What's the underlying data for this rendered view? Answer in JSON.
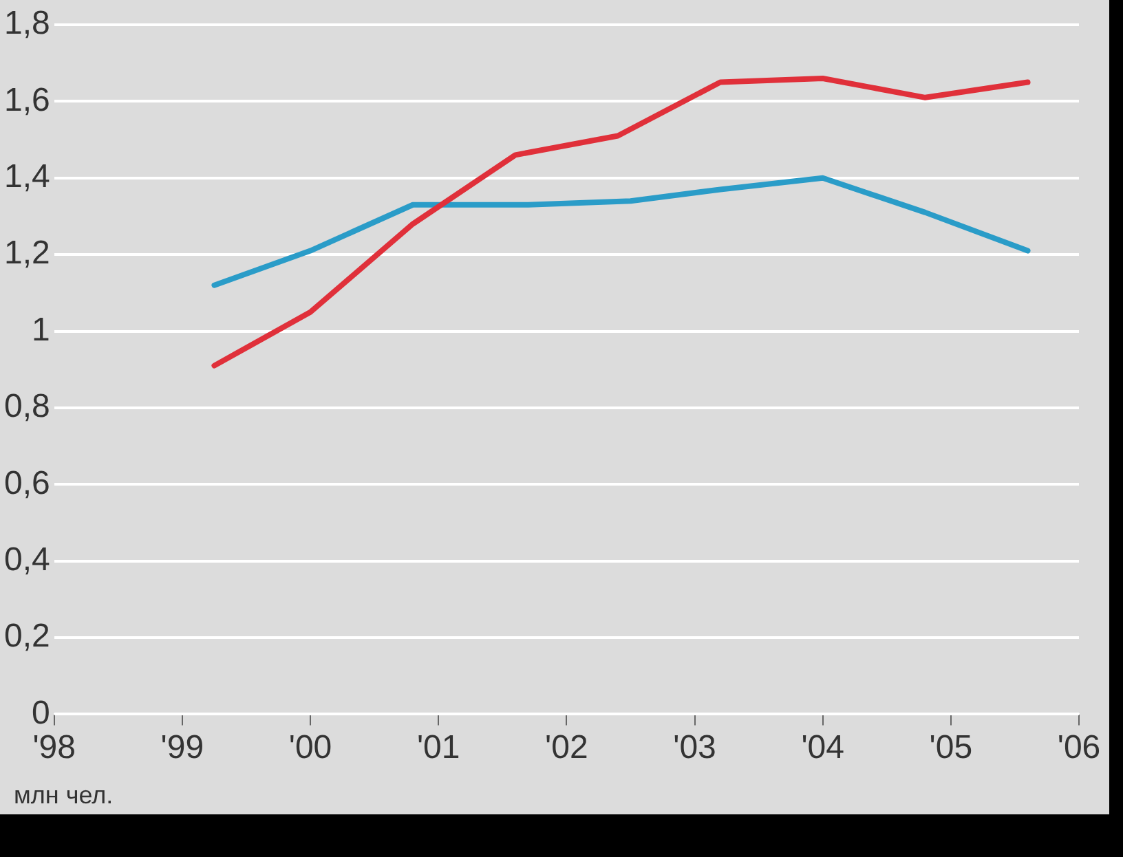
{
  "chart_data": {
    "type": "line",
    "grid": "y",
    "legend": false,
    "marker": "none",
    "line_style": "solid",
    "xlim": [
      1998,
      2006
    ],
    "xticks": [
      {
        "value": 1998,
        "label": "'98"
      },
      {
        "value": 1999,
        "label": "'99"
      },
      {
        "value": 2000,
        "label": "'00"
      },
      {
        "value": 2001,
        "label": "'01"
      },
      {
        "value": 2002,
        "label": "'02"
      },
      {
        "value": 2003,
        "label": "'03"
      },
      {
        "value": 2004,
        "label": "'04"
      },
      {
        "value": 2005,
        "label": "'05"
      },
      {
        "value": 2006,
        "label": "'06"
      }
    ],
    "ylim": [
      0,
      1.8
    ],
    "yticks": [
      0,
      {
        "value": 0.2,
        "label": "0,2"
      },
      {
        "value": 0.4,
        "label": "0,4"
      },
      {
        "value": 0.6,
        "label": "0,6"
      },
      {
        "value": 0.8,
        "label": "0,8"
      },
      1,
      {
        "value": 1.2,
        "label": "1,2"
      },
      {
        "value": 1.4,
        "label": "1,4"
      },
      {
        "value": 1.6,
        "label": "1,6"
      },
      {
        "value": 1.8,
        "label": "1,8"
      }
    ],
    "annotations": [
      "млн чел."
    ],
    "series": [
      {
        "color": "#e0303a",
        "x": [
          1999.25,
          2000,
          2000.8,
          2001.6,
          2002.4,
          2003.2,
          2004,
          2004.8,
          2005.6
        ],
        "values": [
          0.91,
          1.05,
          1.28,
          1.46,
          1.51,
          1.65,
          1.66,
          1.61,
          1.65
        ]
      },
      {
        "color": "#2a9cc8",
        "x": [
          1999.25,
          2000,
          2000.8,
          2001.7,
          2002.5,
          2003.2,
          2004,
          2004.8,
          2005.6
        ],
        "values": [
          1.12,
          1.21,
          1.33,
          1.33,
          1.34,
          1.37,
          1.4,
          1.31,
          1.21
        ]
      }
    ]
  }
}
